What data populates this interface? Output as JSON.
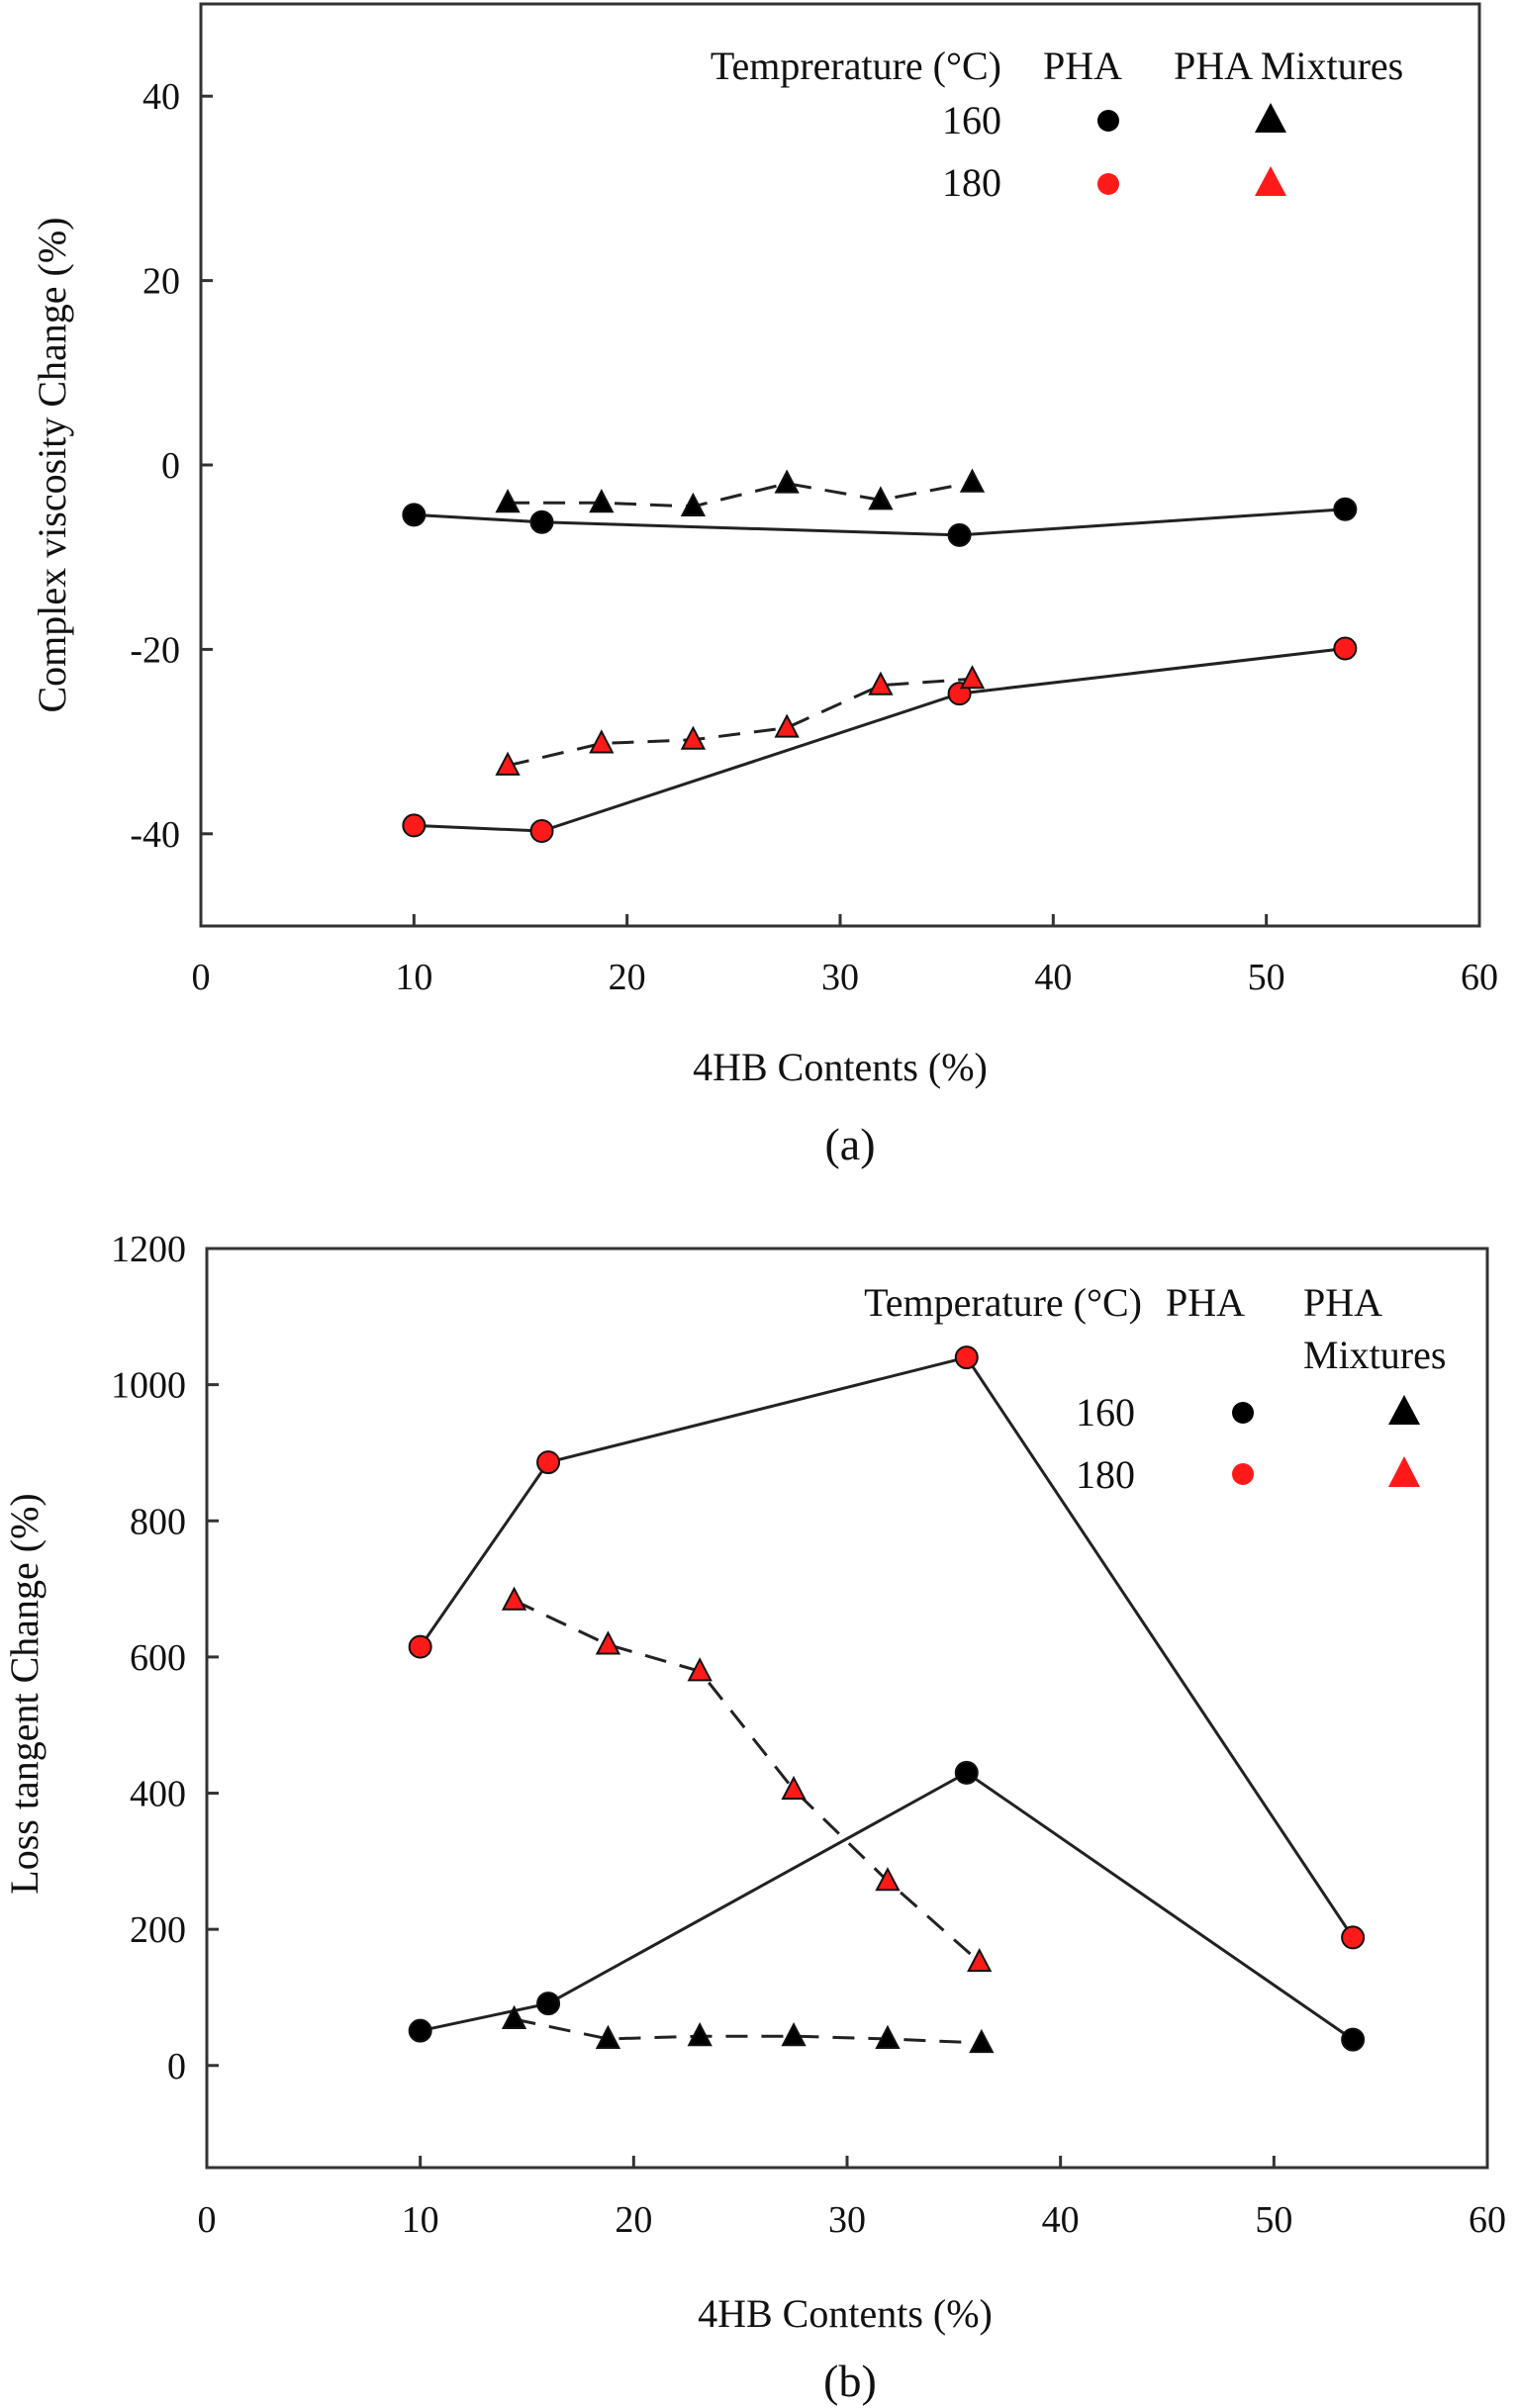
{
  "chart_data": [
    {
      "type": "line",
      "panel_label": "(a)",
      "title": "",
      "xlabel": "4HB Contents (%)",
      "ylabel": "Complex viscosity Change (%)",
      "xlim": [
        0,
        60
      ],
      "ylim": [
        -50,
        50
      ],
      "xticks": [
        0,
        10,
        20,
        30,
        40,
        50,
        60
      ],
      "yticks": [
        -40,
        -20,
        0,
        20,
        40
      ],
      "xtick_labels": [
        "0",
        "10",
        "20",
        "30",
        "40",
        "50",
        "60"
      ],
      "ytick_labels": [
        "-40",
        "-20",
        "0",
        "20",
        "40"
      ],
      "grid": false,
      "legend": {
        "placement": "top-right",
        "header": [
          "Temprerature (°C)",
          "PHA",
          "PHA Mixtures"
        ],
        "rows": [
          {
            "label": "160",
            "color": "#000000"
          },
          {
            "label": "180",
            "color": "#ff1a1a"
          }
        ]
      },
      "series": [
        {
          "name": "PHA 160",
          "temperature": "160",
          "material": "PHA",
          "marker": "circle",
          "line": "solid",
          "color": "#000000",
          "x": [
            10.0,
            16.0,
            35.6,
            53.7
          ],
          "y": [
            -5.4,
            -6.2,
            -7.6,
            -4.8
          ]
        },
        {
          "name": "PHA Mixtures 160",
          "temperature": "160",
          "material": "PHA Mixtures",
          "marker": "triangle",
          "line": "dashed",
          "color": "#000000",
          "x": [
            14.4,
            18.8,
            23.1,
            27.5,
            31.9,
            36.2
          ],
          "y": [
            -4.1,
            -4.1,
            -4.5,
            -2.0,
            -3.8,
            -1.9
          ]
        },
        {
          "name": "PHA 180",
          "temperature": "180",
          "material": "PHA",
          "marker": "circle",
          "line": "solid",
          "color": "#ff1a1a",
          "x": [
            10.0,
            16.0,
            35.6,
            53.7
          ],
          "y": [
            -39.1,
            -39.7,
            -24.8,
            -19.9
          ]
        },
        {
          "name": "PHA Mixtures 180",
          "temperature": "180",
          "material": "PHA Mixtures",
          "marker": "triangle",
          "line": "dashed",
          "color": "#ff1a1a",
          "x": [
            14.4,
            18.8,
            23.1,
            27.5,
            31.9,
            36.2
          ],
          "y": [
            -32.6,
            -30.2,
            -29.8,
            -28.5,
            -23.9,
            -23.2
          ]
        }
      ]
    },
    {
      "type": "line",
      "panel_label": "(b)",
      "title": "",
      "xlabel": "4HB Contents (%)",
      "ylabel": "Loss tangent Change (%)",
      "xlim": [
        0,
        60
      ],
      "ylim": [
        -150,
        1200
      ],
      "xticks": [
        0,
        10,
        20,
        30,
        40,
        50,
        60
      ],
      "yticks": [
        0,
        200,
        400,
        600,
        800,
        1000,
        1200
      ],
      "xtick_labels": [
        "0",
        "10",
        "20",
        "30",
        "40",
        "50",
        "60"
      ],
      "ytick_labels": [
        "0",
        "200",
        "400",
        "600",
        "800",
        "1000",
        "1200"
      ],
      "grid": false,
      "legend": {
        "placement": "top-right",
        "header": [
          "Temperature (°C)",
          "PHA",
          "PHA",
          "Mixtures"
        ],
        "rows": [
          {
            "label": "160",
            "color": "#000000"
          },
          {
            "label": "180",
            "color": "#ff1a1a"
          }
        ]
      },
      "series": [
        {
          "name": "PHA 160",
          "temperature": "160",
          "material": "PHA",
          "marker": "circle",
          "line": "solid",
          "color": "#000000",
          "x": [
            10.0,
            16.0,
            35.6,
            53.7
          ],
          "y": [
            51,
            91,
            430,
            38
          ]
        },
        {
          "name": "PHA Mixtures 160",
          "temperature": "160",
          "material": "PHA Mixtures",
          "marker": "triangle",
          "line": "dashed",
          "color": "#000000",
          "x": [
            14.4,
            18.8,
            23.1,
            27.5,
            31.9,
            36.3
          ],
          "y": [
            68,
            39,
            43,
            43,
            39,
            33
          ]
        },
        {
          "name": "PHA 180",
          "temperature": "180",
          "material": "PHA",
          "marker": "circle",
          "line": "solid",
          "color": "#ff1a1a",
          "x": [
            10.0,
            16.0,
            35.6,
            53.7
          ],
          "y": [
            615,
            886,
            1040,
            188
          ]
        },
        {
          "name": "PHA Mixtures 180",
          "temperature": "180",
          "material": "PHA Mixtures",
          "marker": "triangle",
          "line": "dashed",
          "color": "#ff1a1a",
          "x": [
            14.4,
            18.8,
            23.1,
            27.5,
            31.9,
            36.2
          ],
          "y": [
            683,
            618,
            579,
            405,
            271,
            152
          ]
        }
      ]
    }
  ]
}
